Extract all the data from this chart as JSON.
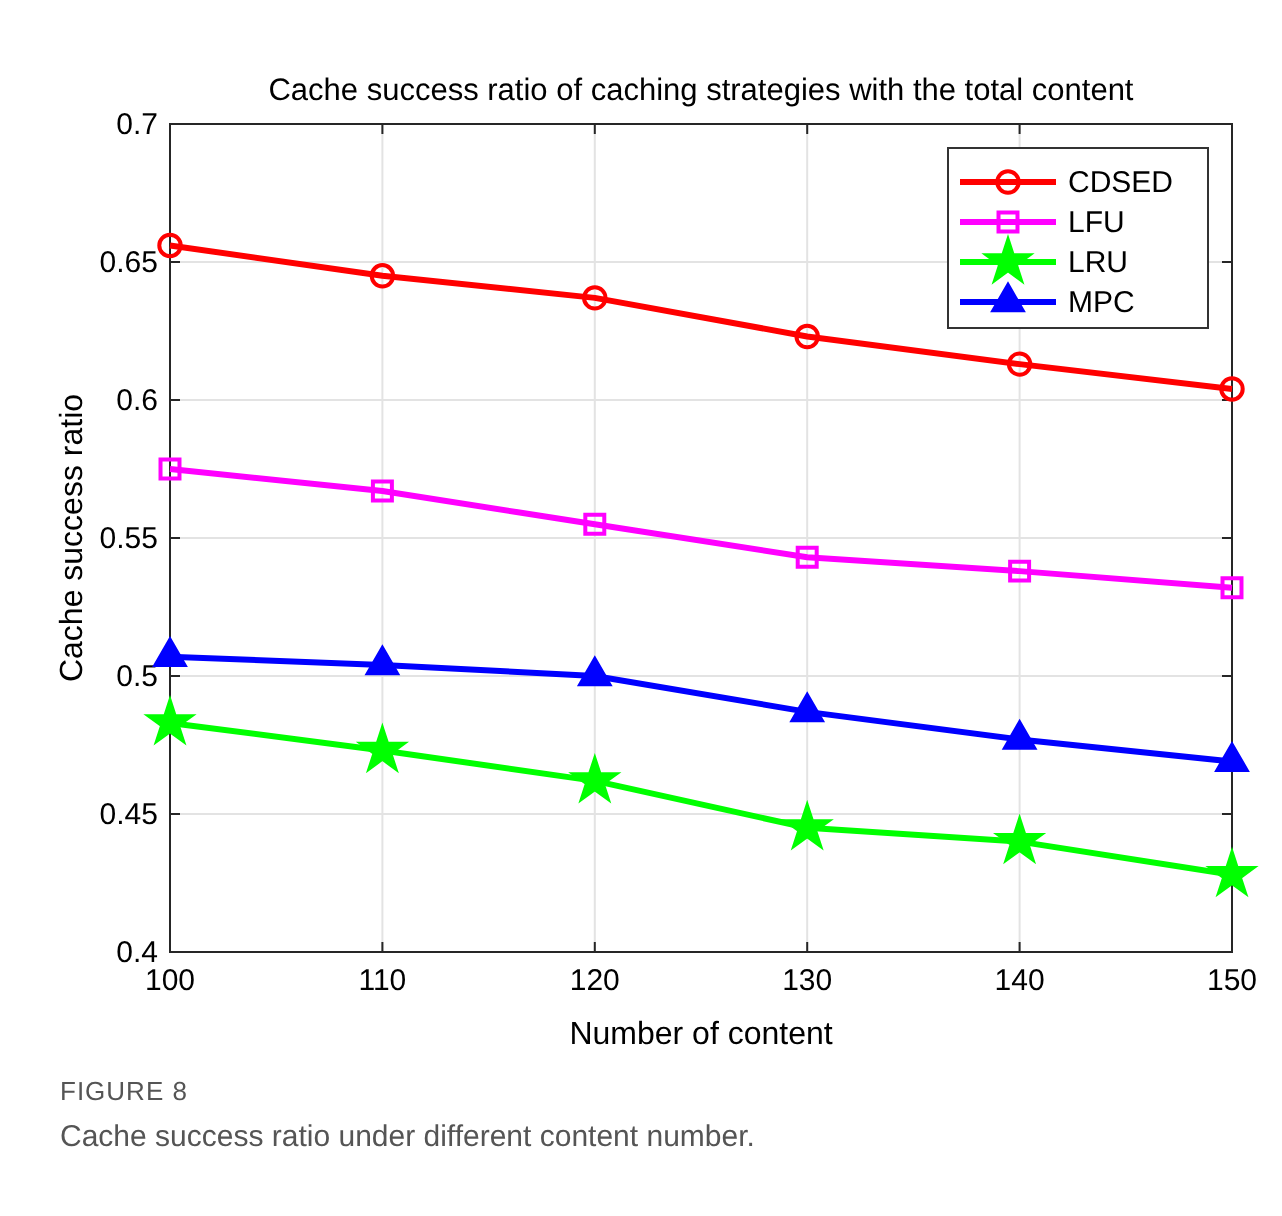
{
  "chart_data": {
    "type": "line",
    "title": "Cache success ratio of caching strategies with the total content",
    "xlabel": "Number of content",
    "ylabel": "Cache success ratio",
    "x": [
      100,
      110,
      120,
      130,
      140,
      150
    ],
    "xlim": [
      100,
      150
    ],
    "xticks": [
      100,
      110,
      120,
      130,
      140,
      150
    ],
    "ylim": [
      0.4,
      0.7
    ],
    "yticks": [
      0.4,
      0.45,
      0.5,
      0.55,
      0.6,
      0.65,
      0.7
    ],
    "grid": true,
    "legend": "top right",
    "line_style": "solid",
    "series": [
      {
        "name": "CDSED",
        "color": "#ff0000",
        "marker": "circle",
        "values": [
          0.656,
          0.645,
          0.637,
          0.623,
          0.613,
          0.604
        ]
      },
      {
        "name": "LFU",
        "color": "#ff00ff",
        "marker": "square",
        "values": [
          0.575,
          0.567,
          0.555,
          0.543,
          0.538,
          0.532
        ]
      },
      {
        "name": "LRU",
        "color": "#00ff00",
        "marker": "star",
        "values": [
          0.483,
          0.473,
          0.462,
          0.445,
          0.44,
          0.428
        ]
      },
      {
        "name": "MPC",
        "color": "#0000ff",
        "marker": "triangle",
        "values": [
          0.507,
          0.504,
          0.5,
          0.487,
          0.477,
          0.469
        ]
      }
    ],
    "annotations": [
      "FIGURE 8",
      "Cache success ratio under different content number."
    ]
  }
}
